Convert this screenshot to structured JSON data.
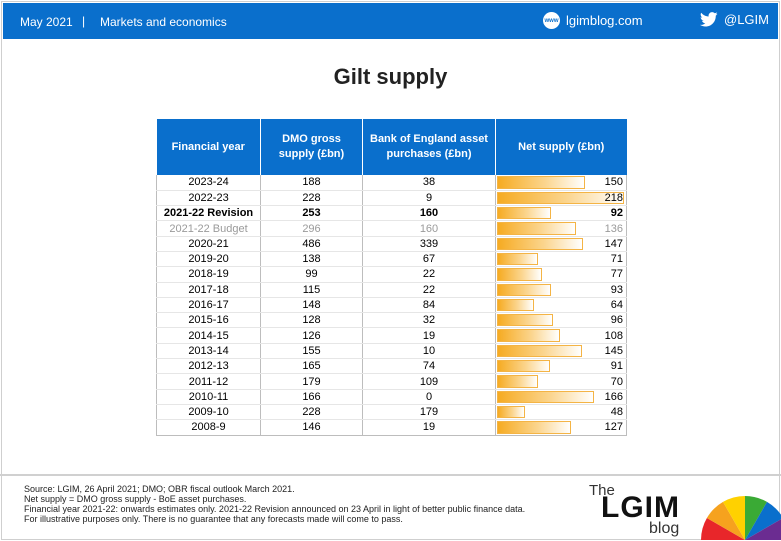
{
  "header": {
    "date": "May 2021",
    "separator": "|",
    "category": "Markets and economics",
    "site_icon": "www-icon",
    "site_icon_text": "www",
    "site": "lgimblog.com",
    "twitter_icon": "twitter-bird-icon",
    "twitter": "@LGIM"
  },
  "title": "Gilt supply",
  "table": {
    "headers": [
      "Financial year",
      "DMO gross supply (£bn)",
      "Bank of England asset purchases (£bn)",
      "Net supply (£bn)"
    ],
    "net_scale_max": 218,
    "rows": [
      {
        "year": "2023-24",
        "dmo": "188",
        "boe": "38",
        "net": "150",
        "net_value": 150,
        "style": ""
      },
      {
        "year": "2022-23",
        "dmo": "228",
        "boe": "9",
        "net": "218",
        "net_value": 218,
        "style": ""
      },
      {
        "year": "2021-22 Revision",
        "dmo": "253",
        "boe": "160",
        "net": "92",
        "net_value": 92,
        "style": "bold"
      },
      {
        "year": "2021-22 Budget",
        "dmo": "296",
        "boe": "160",
        "net": "136",
        "net_value": 136,
        "style": "muted"
      },
      {
        "year": "2020-21",
        "dmo": "486",
        "boe": "339",
        "net": "147",
        "net_value": 147,
        "style": ""
      },
      {
        "year": "2019-20",
        "dmo": "138",
        "boe": "67",
        "net": "71",
        "net_value": 71,
        "style": ""
      },
      {
        "year": "2018-19",
        "dmo": "99",
        "boe": "22",
        "net": "77",
        "net_value": 77,
        "style": ""
      },
      {
        "year": "2017-18",
        "dmo": "115",
        "boe": "22",
        "net": "93",
        "net_value": 93,
        "style": ""
      },
      {
        "year": "2016-17",
        "dmo": "148",
        "boe": "84",
        "net": "64",
        "net_value": 64,
        "style": ""
      },
      {
        "year": "2015-16",
        "dmo": "128",
        "boe": "32",
        "net": "96",
        "net_value": 96,
        "style": ""
      },
      {
        "year": "2014-15",
        "dmo": "126",
        "boe": "19",
        "net": "108",
        "net_value": 108,
        "style": ""
      },
      {
        "year": "2013-14",
        "dmo": "155",
        "boe": "10",
        "net": "145",
        "net_value": 145,
        "style": ""
      },
      {
        "year": "2012-13",
        "dmo": "165",
        "boe": "74",
        "net": "91",
        "net_value": 91,
        "style": ""
      },
      {
        "year": "2011-12",
        "dmo": "179",
        "boe": "109",
        "net": "70",
        "net_value": 70,
        "style": ""
      },
      {
        "year": "2010-11",
        "dmo": "166",
        "boe": "0",
        "net": "166",
        "net_value": 166,
        "style": ""
      },
      {
        "year": "2009-10",
        "dmo": "228",
        "boe": "179",
        "net": "48",
        "net_value": 48,
        "style": ""
      },
      {
        "year": "2008-9",
        "dmo": "146",
        "boe": "19",
        "net": "127",
        "net_value": 127,
        "style": ""
      }
    ]
  },
  "footnotes": [
    "Source: LGIM,  26 April 2021; DMO;  OBR fiscal outlook March 2021.",
    "Net supply = DMO  gross supply - BoE asset purchases.",
    "Financial year 2021-22: onwards estimates only. 2021-22 Revision announced on 23 April in light of better public finance data.",
    "For illustrative purposes only. There is no guarantee that any forecasts made will come to pass."
  ],
  "logo": {
    "the": "The",
    "name": "LGIM",
    "blog": "blog",
    "icon": "umbrella-icon",
    "colors": [
      "#e8262a",
      "#f6a21e",
      "#ffd100",
      "#3aaa35",
      "#0a6fcc",
      "#6b2c91"
    ]
  }
}
